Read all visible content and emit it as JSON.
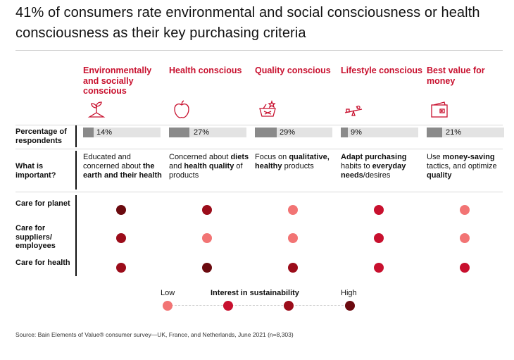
{
  "title": "41% of consumers rate environmental and social consciousness or health consciousness as their key purchasing criteria",
  "segments": [
    {
      "name": "Environmentally and socially conscious",
      "icon": "plant-icon",
      "pct_label": "14%",
      "important": [
        {
          "t": "Educated and concerned about ",
          "b": false
        },
        {
          "t": "the earth and their health",
          "b": true
        }
      ]
    },
    {
      "name": "Health conscious",
      "icon": "apple-icon",
      "pct_label": "27%",
      "important": [
        {
          "t": "Concerned about ",
          "b": false
        },
        {
          "t": "diets",
          "b": true
        },
        {
          "t": " and ",
          "b": false
        },
        {
          "t": "health quality",
          "b": true
        },
        {
          "t": " of products",
          "b": false
        }
      ]
    },
    {
      "name": "Quality conscious",
      "icon": "quality-basket-icon",
      "pct_label": "29%",
      "important": [
        {
          "t": "Focus on ",
          "b": false
        },
        {
          "t": "qualitative, healthy",
          "b": true
        },
        {
          "t": " products",
          "b": false
        }
      ]
    },
    {
      "name": "Lifestyle conscious",
      "icon": "seesaw-icon",
      "pct_label": "9%",
      "important": [
        {
          "t": "Adapt purchasing",
          "b": true
        },
        {
          "t": " habits to ",
          "b": false
        },
        {
          "t": "everyday needs",
          "b": true
        },
        {
          "t": "/desires",
          "b": false
        }
      ]
    },
    {
      "name": "Best value for money",
      "icon": "wallet-icon",
      "pct_label": "21%",
      "important": [
        {
          "t": "Use ",
          "b": false
        },
        {
          "t": "money-saving",
          "b": true
        },
        {
          "t": " tactics, and optimize ",
          "b": false
        },
        {
          "t": "quality",
          "b": true
        }
      ]
    }
  ],
  "row_labels": {
    "percentage": "Percentage of respondents",
    "important": "What is important?",
    "care_planet": "Care for planet",
    "care_suppliers": "Care for suppliers/ employees",
    "care_health": "Care for health"
  },
  "legend": {
    "low": "Low",
    "title": "Interest in sustainability",
    "high": "High",
    "levels": [
      1,
      2,
      3,
      4
    ],
    "colors": [
      "#f27474",
      "#c8102e",
      "#9b0c1a",
      "#6b0a0f"
    ]
  },
  "source": "Source: Bain Elements of Value® consumer survey—UK, France, and Netherlands, June 2021 (n=8,303)",
  "chart_data": {
    "type": "table",
    "title": "41% of consumers rate environmental and social consciousness or health consciousness as their key purchasing criteria",
    "categories": [
      "Environmentally and socially conscious",
      "Health conscious",
      "Quality conscious",
      "Lifestyle conscious",
      "Best value for money"
    ],
    "series": [
      {
        "name": "Percentage of respondents",
        "values": [
          14,
          27,
          29,
          9,
          21
        ]
      },
      {
        "name": "Care for planet",
        "values": [
          4,
          3,
          1,
          2,
          1
        ]
      },
      {
        "name": "Care for suppliers/ employees",
        "values": [
          3,
          1,
          1,
          2,
          1
        ]
      },
      {
        "name": "Care for health",
        "values": [
          3,
          4,
          3,
          2,
          2
        ]
      }
    ],
    "scale": {
      "min_label": "Low",
      "max_label": "High",
      "levels": [
        1,
        2,
        3,
        4
      ]
    },
    "colors": {
      "1": "#f27474",
      "2": "#c8102e",
      "3": "#9b0c1a",
      "4": "#6b0a0f"
    },
    "pct_max": 100
  }
}
